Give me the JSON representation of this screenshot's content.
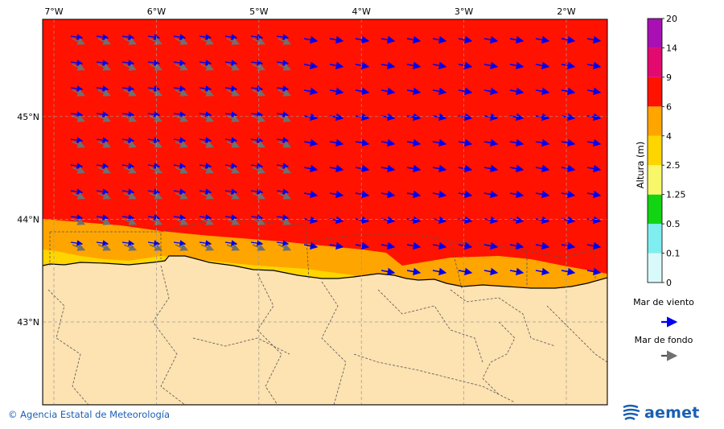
{
  "map": {
    "lon_ticks": [
      "7°W",
      "6°W",
      "5°W",
      "4°W",
      "3°W",
      "2°W"
    ],
    "lat_ticks": [
      "45°N",
      "44°N",
      "43°N"
    ],
    "lon_values": [
      -7,
      -6,
      -5,
      -4,
      -3,
      -2
    ],
    "lat_values": [
      45,
      44,
      43
    ]
  },
  "colorbar": {
    "title": "Altura (m)",
    "levels": [
      "0",
      "0.1",
      "0.5",
      "1.25",
      "2.5",
      "4",
      "6",
      "9",
      "14",
      "20"
    ],
    "colors": [
      "#d8fafa",
      "#7feef0",
      "#12d412",
      "#f7f769",
      "#ffd500",
      "#ffa500",
      "#ff1200",
      "#e20a6e",
      "#a910b4"
    ]
  },
  "legend": {
    "wind_sea_label": "Mar de viento",
    "swell_label": "Mar de fondo",
    "wind_sea_color": "#0000ee",
    "swell_color": "#555555"
  },
  "footer": {
    "credit": "© Agencia Estatal de Meteorología",
    "logo_text": "aemet"
  },
  "colors": {
    "land": "#fde2b2",
    "sea_high": "#ff1200",
    "sea_mid": "#ffa500",
    "sea_low": "#ffd500",
    "grid": "#9a9a9a"
  }
}
